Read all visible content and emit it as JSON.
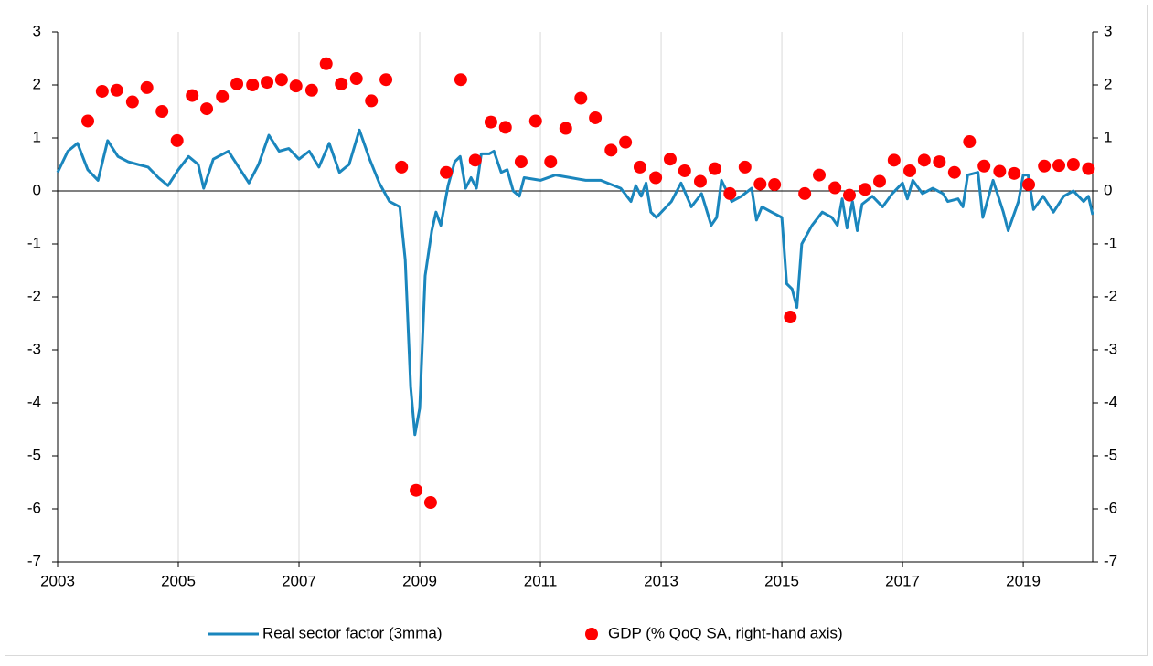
{
  "chart_data": {
    "type": "line",
    "xlim": [
      2003,
      2020.15
    ],
    "xticks": [
      2003,
      2005,
      2007,
      2009,
      2011,
      2013,
      2015,
      2017,
      2019
    ],
    "ylim": [
      -7,
      3
    ],
    "yticks": [
      -7,
      -6,
      -5,
      -4,
      -3,
      -2,
      -1,
      0,
      1,
      2,
      3
    ],
    "y2lim": [
      -7,
      3
    ],
    "y2ticks": [
      -7,
      -6,
      -5,
      -4,
      -3,
      -2,
      -1,
      0,
      1,
      2,
      3
    ],
    "grid": "x",
    "legend": "bottom",
    "series": [
      {
        "name": "Real sector factor (3mma)",
        "type": "line",
        "color": "#1a86bd",
        "x": [
          2003.0,
          2003.17,
          2003.33,
          2003.5,
          2003.67,
          2003.83,
          2004.0,
          2004.17,
          2004.33,
          2004.5,
          2004.67,
          2004.83,
          2005.0,
          2005.17,
          2005.33,
          2005.42,
          2005.58,
          2005.83,
          2006.0,
          2006.17,
          2006.33,
          2006.5,
          2006.67,
          2006.83,
          2007.0,
          2007.17,
          2007.33,
          2007.5,
          2007.67,
          2007.83,
          2008.0,
          2008.17,
          2008.33,
          2008.5,
          2008.67,
          2008.76,
          2008.85,
          2008.92,
          2009.0,
          2009.09,
          2009.2,
          2009.27,
          2009.35,
          2009.47,
          2009.58,
          2009.67,
          2009.76,
          2009.85,
          2009.94,
          2010.02,
          2010.15,
          2010.23,
          2010.35,
          2010.45,
          2010.55,
          2010.65,
          2010.73,
          2011.0,
          2011.25,
          2011.5,
          2011.75,
          2012.0,
          2012.33,
          2012.5,
          2012.58,
          2012.67,
          2012.75,
          2012.83,
          2012.92,
          2013.17,
          2013.33,
          2013.5,
          2013.67,
          2013.83,
          2013.92,
          2014.0,
          2014.17,
          2014.33,
          2014.5,
          2014.58,
          2014.67,
          2014.83,
          2015.0,
          2015.08,
          2015.17,
          2015.25,
          2015.33,
          2015.5,
          2015.67,
          2015.83,
          2015.92,
          2016.0,
          2016.08,
          2016.17,
          2016.25,
          2016.33,
          2016.5,
          2016.67,
          2016.83,
          2017.0,
          2017.08,
          2017.17,
          2017.33,
          2017.5,
          2017.67,
          2017.75,
          2017.92,
          2018.0,
          2018.08,
          2018.25,
          2018.33,
          2018.5,
          2018.67,
          2018.75,
          2018.92,
          2019.0,
          2019.08,
          2019.17,
          2019.33,
          2019.5,
          2019.67,
          2019.83,
          2020.0,
          2020.08,
          2020.15
        ],
        "values": [
          0.35,
          0.75,
          0.9,
          0.4,
          0.2,
          0.95,
          0.65,
          0.55,
          0.5,
          0.45,
          0.25,
          0.1,
          0.4,
          0.65,
          0.5,
          0.05,
          0.6,
          0.75,
          0.45,
          0.15,
          0.5,
          1.05,
          0.75,
          0.8,
          0.6,
          0.75,
          0.45,
          0.9,
          0.35,
          0.5,
          1.15,
          0.6,
          0.15,
          -0.2,
          -0.3,
          -1.3,
          -3.7,
          -4.6,
          -4.1,
          -1.6,
          -0.75,
          -0.4,
          -0.65,
          0.1,
          0.55,
          0.65,
          0.05,
          0.25,
          0.05,
          0.7,
          0.7,
          0.75,
          0.35,
          0.4,
          0.0,
          -0.1,
          0.25,
          0.2,
          0.3,
          0.25,
          0.2,
          0.2,
          0.05,
          -0.2,
          0.1,
          -0.1,
          0.15,
          -0.4,
          -0.5,
          -0.2,
          0.15,
          -0.3,
          -0.05,
          -0.65,
          -0.5,
          0.2,
          -0.2,
          -0.1,
          0.05,
          -0.55,
          -0.3,
          -0.4,
          -0.5,
          -1.75,
          -1.85,
          -2.2,
          -1.0,
          -0.65,
          -0.4,
          -0.5,
          -0.65,
          -0.15,
          -0.7,
          -0.2,
          -0.75,
          -0.25,
          -0.1,
          -0.3,
          -0.05,
          0.15,
          -0.15,
          0.2,
          -0.05,
          0.05,
          -0.05,
          -0.2,
          -0.15,
          -0.3,
          0.3,
          0.35,
          -0.5,
          0.2,
          -0.4,
          -0.75,
          -0.2,
          0.3,
          0.3,
          -0.35,
          -0.1,
          -0.4,
          -0.1,
          0.0,
          -0.2,
          -0.1,
          -0.45
        ]
      },
      {
        "name": "GDP (% QoQ SA, right-hand axis)",
        "type": "scatter",
        "axis": "y2",
        "color": "#ff0000",
        "x": [
          2003.5,
          2003.74,
          2003.98,
          2004.24,
          2004.48,
          2004.73,
          2004.98,
          2005.23,
          2005.47,
          2005.73,
          2005.97,
          2006.23,
          2006.47,
          2006.71,
          2006.95,
          2007.21,
          2007.45,
          2007.7,
          2007.95,
          2008.2,
          2008.44,
          2008.7,
          2008.94,
          2009.18,
          2009.44,
          2009.68,
          2009.92,
          2010.18,
          2010.42,
          2010.68,
          2010.92,
          2011.17,
          2011.42,
          2011.67,
          2011.91,
          2012.17,
          2012.41,
          2012.65,
          2012.91,
          2013.15,
          2013.39,
          2013.65,
          2013.89,
          2014.14,
          2014.39,
          2014.64,
          2014.88,
          2015.14,
          2015.38,
          2015.62,
          2015.88,
          2016.12,
          2016.38,
          2016.62,
          2016.86,
          2017.12,
          2017.36,
          2017.61,
          2017.86,
          2018.11,
          2018.35,
          2018.61,
          2018.85,
          2019.09,
          2019.35,
          2019.59,
          2019.83,
          2020.08
        ],
        "values": [
          1.32,
          1.88,
          1.9,
          1.68,
          1.95,
          1.5,
          0.95,
          1.8,
          1.55,
          1.78,
          2.02,
          2.0,
          2.05,
          2.1,
          1.98,
          1.9,
          2.4,
          2.02,
          2.12,
          1.7,
          2.1,
          0.45,
          -5.65,
          -5.88,
          0.35,
          2.1,
          0.58,
          1.3,
          1.2,
          0.55,
          1.32,
          0.55,
          1.18,
          1.75,
          1.38,
          0.77,
          0.92,
          0.45,
          0.25,
          0.6,
          0.38,
          0.18,
          0.42,
          -0.05,
          0.45,
          0.13,
          0.12,
          -2.38,
          -0.05,
          0.3,
          0.06,
          -0.08,
          0.03,
          0.18,
          0.58,
          0.38,
          0.58,
          0.55,
          0.35,
          0.93,
          0.47,
          0.37,
          0.33,
          0.12,
          0.47,
          0.48,
          0.5,
          0.42
        ]
      }
    ]
  }
}
